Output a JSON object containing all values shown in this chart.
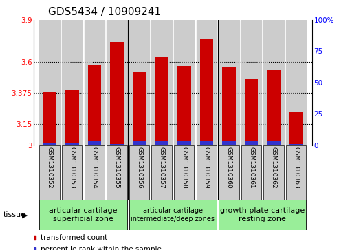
{
  "title": "GDS5434 / 10909241",
  "samples": [
    "GSM1310352",
    "GSM1310353",
    "GSM1310354",
    "GSM1310355",
    "GSM1310356",
    "GSM1310357",
    "GSM1310358",
    "GSM1310359",
    "GSM1310360",
    "GSM1310361",
    "GSM1310362",
    "GSM1310363"
  ],
  "red_values": [
    3.38,
    3.4,
    3.58,
    3.74,
    3.53,
    3.63,
    3.57,
    3.76,
    3.56,
    3.48,
    3.54,
    3.24
  ],
  "blue_values": [
    2,
    2,
    3,
    1,
    3,
    3,
    3,
    3,
    3,
    3,
    3,
    1
  ],
  "ylim_left": [
    3.0,
    3.9
  ],
  "ylim_right": [
    0,
    100
  ],
  "yticks_left": [
    3.0,
    3.15,
    3.375,
    3.6,
    3.9
  ],
  "ytick_labels_left": [
    "3",
    "3.15",
    "3.375",
    "3.6",
    "3.9"
  ],
  "yticks_right": [
    0,
    25,
    50,
    75,
    100
  ],
  "ytick_labels_right": [
    "0",
    "25",
    "50",
    "75",
    "100%"
  ],
  "bar_width": 0.6,
  "red_color": "#cc0000",
  "blue_color": "#3333cc",
  "groups": [
    {
      "label": "articular cartilage\nsuperficial zone",
      "start": 0,
      "end": 3,
      "color": "#99ee99",
      "fontsize": 8
    },
    {
      "label": "articular cartilage\nintermediate/deep zones",
      "start": 4,
      "end": 7,
      "color": "#99ee99",
      "fontsize": 7
    },
    {
      "label": "growth plate cartilage\nresting zone",
      "start": 8,
      "end": 11,
      "color": "#99ee99",
      "fontsize": 8
    }
  ],
  "tissue_label": "tissue",
  "legend_red": "transformed count",
  "legend_blue": "percentile rank within the sample",
  "bg_color": "#ffffff",
  "bar_bg_color": "#cccccc",
  "title_fontsize": 11,
  "tick_fontsize": 7.5,
  "sample_fontsize": 6.5
}
